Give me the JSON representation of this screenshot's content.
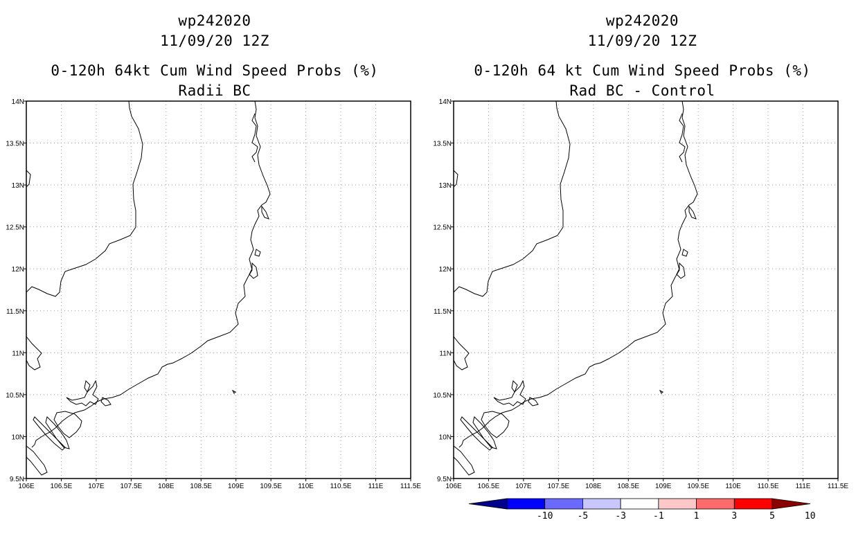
{
  "left_panel": {
    "header_line1": "wp242020",
    "header_line2": "11/09/20 12Z",
    "title_line1": "0-120h 64kt Cum Wind Speed Probs (%)",
    "title_line2": "Radii BC"
  },
  "right_panel": {
    "header_line1": "wp242020",
    "header_line2": "11/09/20 12Z",
    "title_line1": "0-120h 64 kt Cum Wind Speed Probs (%)",
    "title_line2": "Rad BC - Control"
  },
  "axes": {
    "x_ticks": [
      "106E",
      "106.5E",
      "107E",
      "107.5E",
      "108E",
      "108.5E",
      "109E",
      "109.5E",
      "110E",
      "110.5E",
      "111E",
      "111.5E"
    ],
    "y_ticks": [
      "14N",
      "13.5N",
      "13N",
      "12.5N",
      "12N",
      "11.5N",
      "11N",
      "10.5N",
      "10N",
      "9.5N"
    ]
  },
  "colorbar": {
    "labels": [
      "-10",
      "-5",
      "-3",
      "-1",
      "1",
      "3",
      "5",
      "10"
    ],
    "colors": [
      "#00008b",
      "#0000ff",
      "#6a6aff",
      "#c8c8ff",
      "#ffffff",
      "#ffc8c8",
      "#ff6a6a",
      "#ff0000",
      "#8b0000"
    ]
  }
}
